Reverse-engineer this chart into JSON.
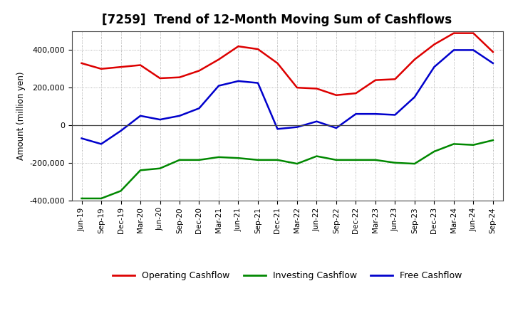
{
  "title": "[7259]  Trend of 12-Month Moving Sum of Cashflows",
  "ylabel": "Amount (million yen)",
  "x_labels": [
    "Jun-19",
    "Sep-19",
    "Dec-19",
    "Mar-20",
    "Jun-20",
    "Sep-20",
    "Dec-20",
    "Mar-21",
    "Jun-21",
    "Sep-21",
    "Dec-21",
    "Mar-22",
    "Jun-22",
    "Sep-22",
    "Dec-22",
    "Mar-23",
    "Jun-23",
    "Sep-23",
    "Dec-23",
    "Mar-24",
    "Jun-24",
    "Sep-24"
  ],
  "operating": [
    330000,
    300000,
    310000,
    320000,
    250000,
    255000,
    290000,
    350000,
    420000,
    405000,
    330000,
    200000,
    195000,
    160000,
    170000,
    240000,
    245000,
    350000,
    430000,
    490000,
    490000,
    390000
  ],
  "investing": [
    -390000,
    -390000,
    -350000,
    -240000,
    -230000,
    -185000,
    -185000,
    -170000,
    -175000,
    -185000,
    -185000,
    -205000,
    -165000,
    -185000,
    -185000,
    -185000,
    -200000,
    -205000,
    -140000,
    -100000,
    -105000,
    -80000
  ],
  "free": [
    -70000,
    -100000,
    -30000,
    50000,
    30000,
    50000,
    90000,
    210000,
    235000,
    225000,
    -20000,
    -10000,
    20000,
    -15000,
    60000,
    60000,
    55000,
    150000,
    310000,
    400000,
    400000,
    330000
  ],
  "ylim": [
    -400000,
    500000
  ],
  "yticks": [
    -400000,
    -200000,
    0,
    200000,
    400000
  ],
  "operating_color": "#dd0000",
  "investing_color": "#008800",
  "free_color": "#0000cc",
  "background_color": "#ffffff",
  "grid_color": "#999999",
  "line_width": 1.8,
  "title_fontsize": 12,
  "legend_labels": [
    "Operating Cashflow",
    "Investing Cashflow",
    "Free Cashflow"
  ]
}
